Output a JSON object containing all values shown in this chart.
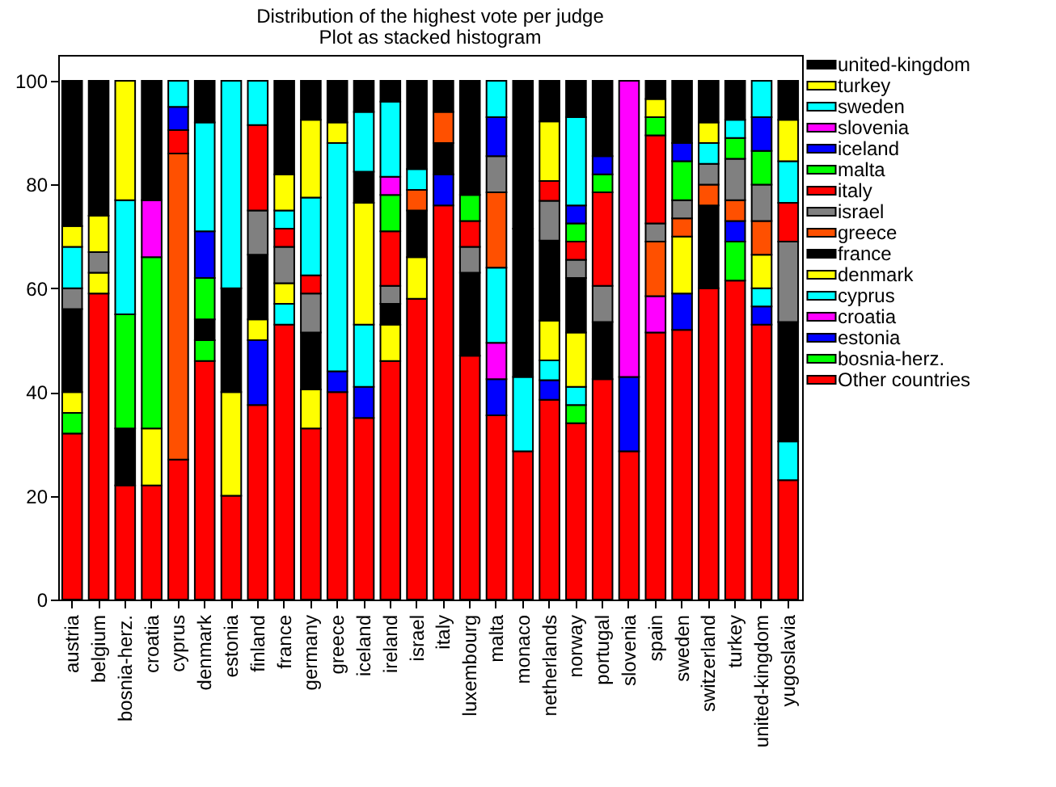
{
  "chart_data": {
    "type": "bar",
    "stacked": true,
    "title": "Distribution of the highest vote per judge",
    "subtitle": "Plot as stacked histogram",
    "categories": [
      "austria",
      "belgium",
      "bosnia-herz.",
      "croatia",
      "cyprus",
      "denmark",
      "estonia",
      "finland",
      "france",
      "germany",
      "greece",
      "iceland",
      "ireland",
      "israel",
      "italy",
      "luxembourg",
      "malta",
      "monaco",
      "netherlands",
      "norway",
      "portugal",
      "slovenia",
      "spain",
      "sweden",
      "switzerland",
      "turkey",
      "united-kingdom",
      "yugoslavia"
    ],
    "ylim": [
      0,
      105
    ],
    "yticks": [
      0,
      20,
      40,
      60,
      80,
      100
    ],
    "grid": false,
    "legend": "right",
    "series": [
      {
        "name": "Other countries",
        "color": "#ff0000",
        "values": [
          32,
          59,
          22,
          22,
          27,
          46,
          20,
          37.5,
          53,
          33,
          40,
          35,
          46,
          58,
          76,
          47,
          35.5,
          28.6,
          38.5,
          34,
          42.5,
          28.6,
          51.5,
          52,
          60,
          61.5,
          53,
          23
        ]
      },
      {
        "name": "bosnia-herz.",
        "color": "#00ff00",
        "values": [
          4,
          null,
          null,
          null,
          null,
          4,
          null,
          null,
          null,
          null,
          null,
          null,
          null,
          null,
          null,
          null,
          null,
          null,
          null,
          3.5,
          null,
          null,
          null,
          null,
          null,
          7.5,
          null,
          null
        ]
      },
      {
        "name": "estonia",
        "color": "#0000ff",
        "values": [
          null,
          null,
          null,
          null,
          null,
          null,
          null,
          12.5,
          null,
          null,
          4,
          6,
          null,
          null,
          6,
          null,
          7,
          null,
          3.8,
          null,
          null,
          14.3,
          null,
          7,
          null,
          4,
          3.5,
          null
        ]
      },
      {
        "name": "croatia",
        "color": "#ff00ff",
        "values": [
          null,
          null,
          null,
          null,
          null,
          null,
          null,
          null,
          null,
          null,
          null,
          null,
          null,
          null,
          null,
          null,
          7,
          null,
          null,
          null,
          null,
          57.1,
          7,
          null,
          null,
          null,
          null,
          null
        ]
      },
      {
        "name": "cyprus",
        "color": "#00ffff",
        "values": [
          null,
          null,
          null,
          null,
          null,
          null,
          null,
          null,
          4,
          null,
          44,
          12,
          null,
          null,
          null,
          null,
          14.5,
          14.3,
          3.8,
          3.5,
          null,
          null,
          null,
          null,
          null,
          null,
          3.5,
          7.5
        ]
      },
      {
        "name": "denmark",
        "color": "#ffff00",
        "values": [
          4,
          4,
          null,
          11,
          null,
          null,
          20,
          4,
          4,
          7.5,
          4,
          23.5,
          7,
          8,
          null,
          null,
          null,
          null,
          7.7,
          10.5,
          null,
          null,
          null,
          11,
          null,
          null,
          6.5,
          null
        ]
      },
      {
        "name": "france",
        "color": "#000000",
        "values": [
          16,
          null,
          11,
          null,
          null,
          4,
          20,
          12.5,
          null,
          11,
          null,
          6,
          4,
          9,
          6,
          16,
          null,
          28.6,
          15.4,
          10.5,
          11,
          null,
          null,
          null,
          16,
          null,
          null,
          23
        ]
      },
      {
        "name": "greece",
        "color": "#ff5000",
        "values": [
          null,
          null,
          null,
          null,
          59,
          null,
          null,
          null,
          null,
          null,
          null,
          null,
          null,
          4,
          6,
          null,
          14.5,
          null,
          null,
          null,
          null,
          null,
          10.5,
          3.5,
          4,
          4,
          6.5,
          null
        ]
      },
      {
        "name": "israel",
        "color": "#808080",
        "values": [
          4,
          4,
          null,
          null,
          null,
          null,
          null,
          8.5,
          7,
          7.5,
          null,
          null,
          3.5,
          null,
          null,
          5,
          7,
          null,
          7.7,
          3.5,
          7,
          null,
          3.5,
          3.5,
          4,
          8,
          7,
          15.5
        ]
      },
      {
        "name": "italy",
        "color": "#ff0000",
        "values": [
          null,
          null,
          null,
          null,
          4.5,
          null,
          null,
          16.5,
          3.5,
          3.5,
          null,
          null,
          10.5,
          null,
          null,
          5,
          null,
          null,
          3.8,
          3.5,
          18,
          null,
          17,
          null,
          null,
          null,
          null,
          7.5
        ]
      },
      {
        "name": "malta",
        "color": "#00ff00",
        "values": [
          null,
          null,
          22,
          33,
          null,
          8,
          null,
          null,
          null,
          null,
          null,
          null,
          7,
          null,
          null,
          5,
          null,
          null,
          null,
          3.5,
          3.5,
          null,
          3.5,
          7.5,
          null,
          4,
          6.5,
          null
        ]
      },
      {
        "name": "iceland",
        "color": "#0000ff",
        "values": [
          null,
          null,
          null,
          null,
          4.5,
          9,
          null,
          null,
          null,
          null,
          null,
          null,
          null,
          null,
          null,
          null,
          7.5,
          null,
          null,
          3.5,
          3.5,
          null,
          null,
          3.5,
          null,
          null,
          6.5,
          null
        ]
      },
      {
        "name": "slovenia",
        "color": "#ff00ff",
        "values": [
          null,
          null,
          null,
          11,
          null,
          null,
          null,
          null,
          null,
          null,
          null,
          null,
          3.5,
          null,
          null,
          null,
          null,
          null,
          null,
          null,
          null,
          null,
          null,
          null,
          null,
          null,
          null,
          null
        ]
      },
      {
        "name": "sweden",
        "color": "#00ffff",
        "values": [
          8,
          null,
          22,
          null,
          5,
          21,
          40,
          8.5,
          3.5,
          15,
          null,
          11.5,
          14.5,
          4,
          null,
          null,
          7,
          null,
          null,
          17,
          null,
          null,
          null,
          null,
          4,
          3.5,
          7,
          8
        ]
      },
      {
        "name": "turkey",
        "color": "#ffff00",
        "values": [
          4,
          7,
          23,
          null,
          null,
          null,
          null,
          null,
          7,
          15,
          null,
          null,
          null,
          null,
          null,
          null,
          null,
          null,
          11.5,
          null,
          null,
          null,
          3.5,
          null,
          4,
          null,
          null,
          8
        ]
      },
      {
        "name": "united-kingdom",
        "color": "#000000",
        "values": [
          28,
          26,
          null,
          23,
          null,
          8,
          null,
          null,
          18,
          7.5,
          8,
          6,
          4,
          17,
          6,
          22,
          null,
          28.5,
          7.8,
          7,
          14.5,
          null,
          3.5,
          12,
          8,
          7.5,
          null,
          7.5
        ]
      }
    ]
  }
}
